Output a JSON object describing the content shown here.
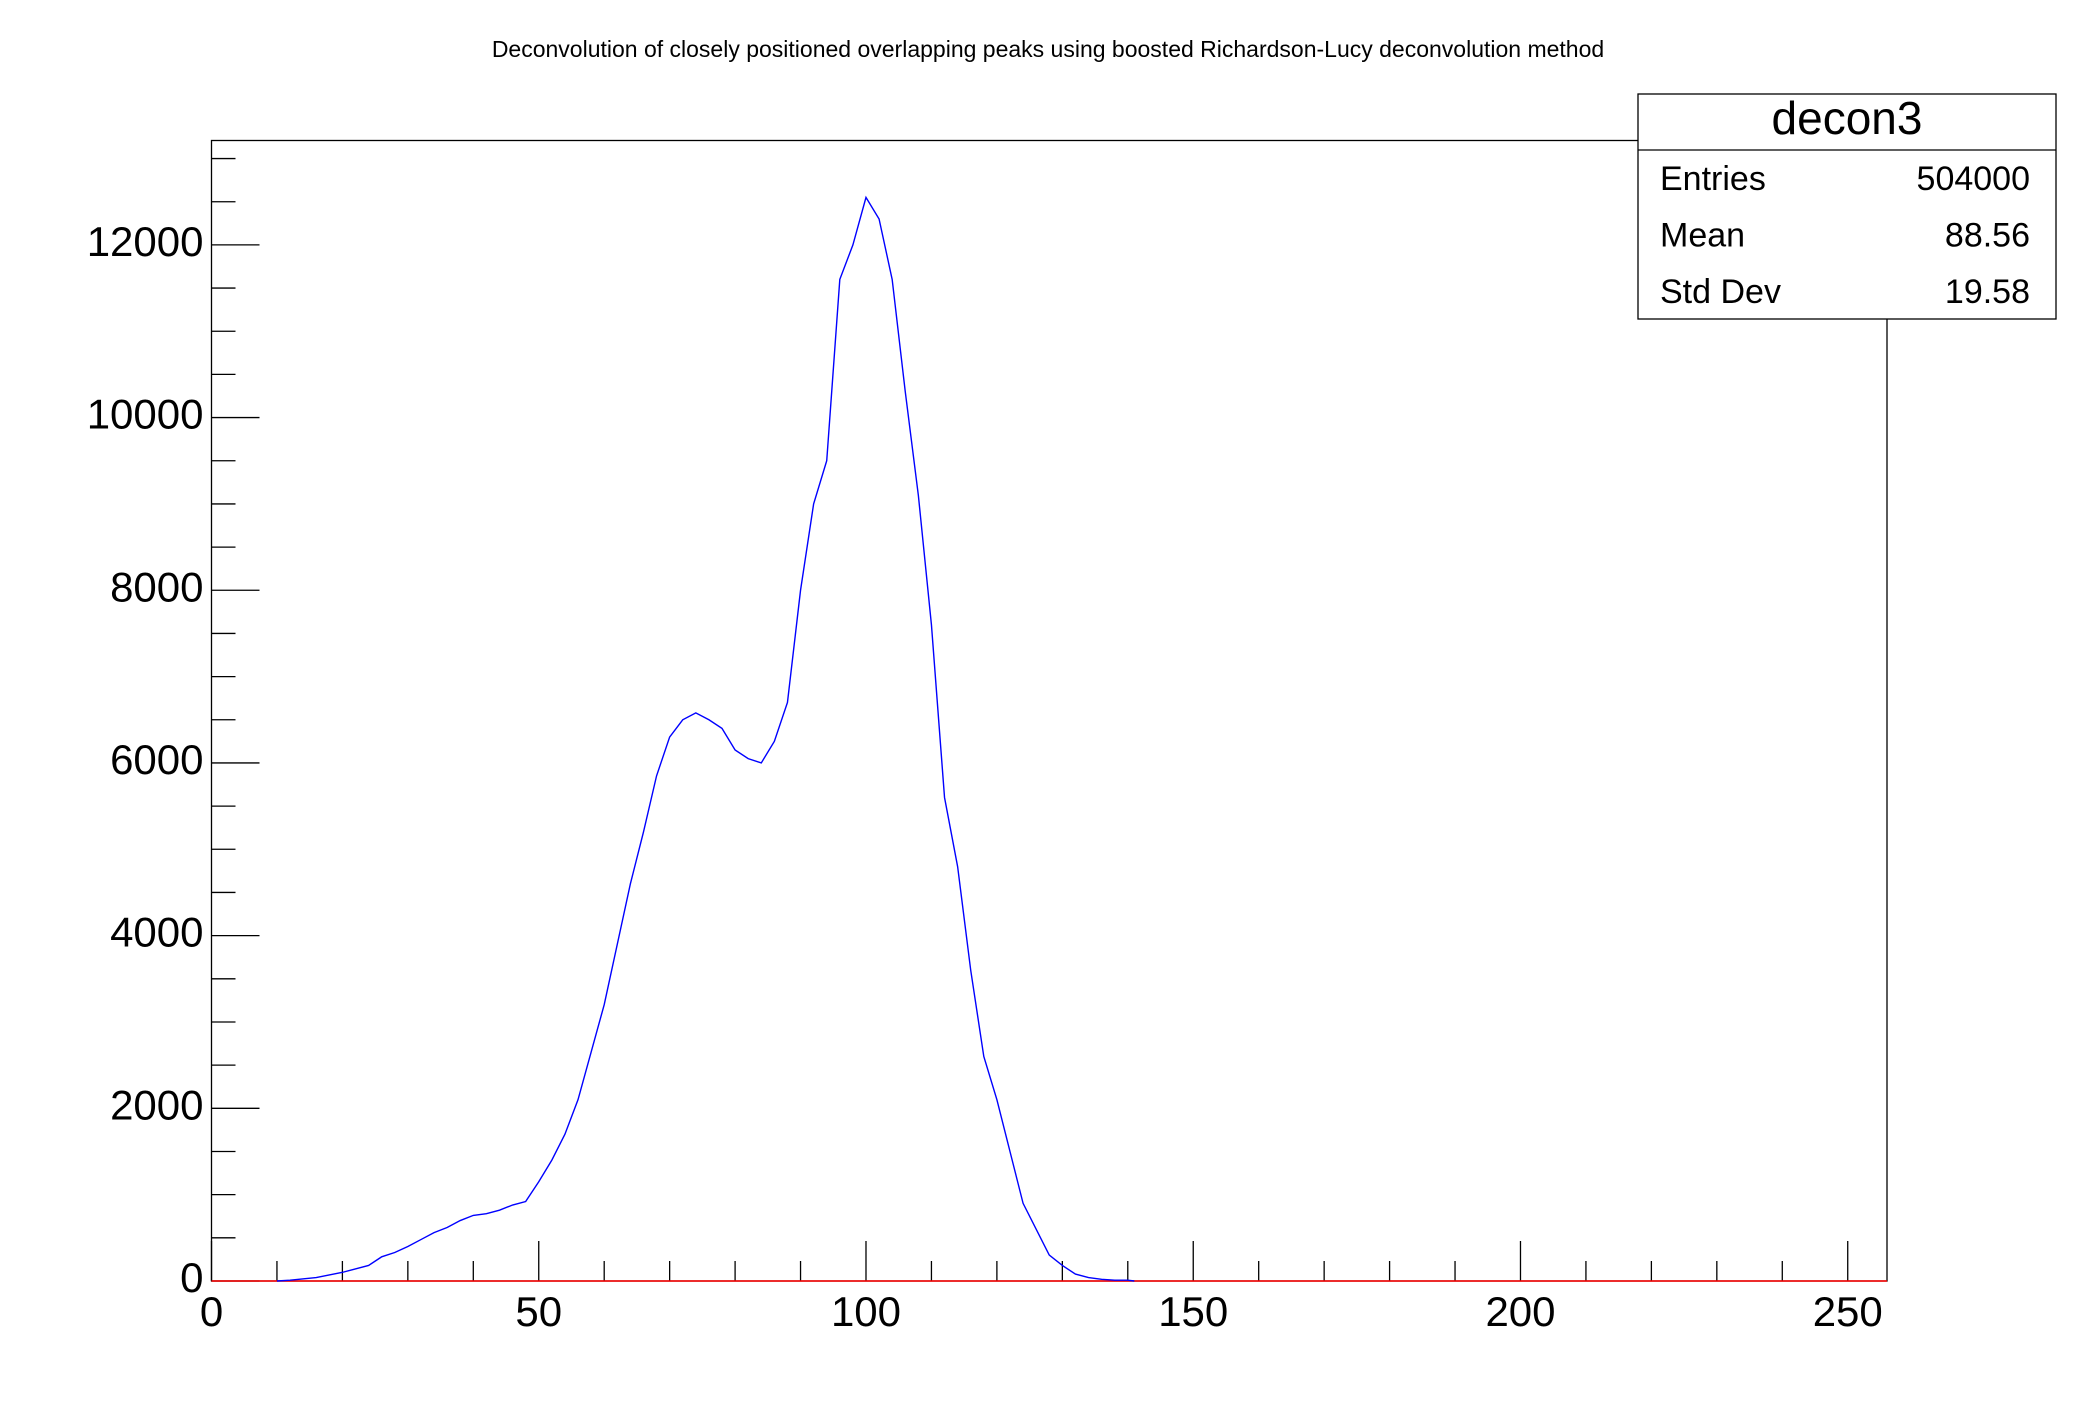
{
  "chart_data": {
    "type": "line",
    "title": "Deconvolution of closely positioned overlapping peaks using boosted Richardson-Lucy deconvolution method",
    "series": [
      {
        "color": "#0000ff",
        "x": [
          10,
          12,
          16,
          20,
          24,
          26,
          28,
          30,
          32,
          34,
          36,
          38,
          40,
          42,
          44,
          46,
          48,
          50,
          52,
          54,
          56,
          58,
          60,
          62,
          64,
          66,
          68,
          70,
          72,
          74,
          76,
          78,
          80,
          82,
          84,
          86,
          88,
          90,
          92,
          94,
          96,
          98,
          100,
          102,
          104,
          106,
          108,
          110,
          112,
          114,
          116,
          118,
          120,
          122,
          124,
          126,
          128,
          130,
          132,
          134,
          136,
          138,
          140,
          141
        ],
        "values": [
          0,
          10,
          40,
          100,
          180,
          280,
          330,
          400,
          480,
          560,
          620,
          700,
          760,
          780,
          820,
          880,
          920,
          1150,
          1400,
          1700,
          2100,
          2650,
          3200,
          3900,
          4600,
          5200,
          5850,
          6300,
          6500,
          6580,
          6500,
          6400,
          6150,
          6050,
          6000,
          6250,
          6700,
          8000,
          9000,
          9500,
          11600,
          12000,
          12550,
          12300,
          11600,
          10300,
          9100,
          7600,
          5600,
          4800,
          3600,
          2600,
          2100,
          1500,
          900,
          600,
          300,
          180,
          80,
          40,
          20,
          10,
          10,
          0
        ]
      },
      {
        "color": "#ff0000",
        "x": [
          0,
          256
        ],
        "values": [
          0,
          0
        ]
      }
    ],
    "xlim": [
      0,
      256
    ],
    "ylim": [
      0,
      13209
    ],
    "xticks": [
      0,
      50,
      100,
      150,
      200,
      250
    ],
    "yticks": [
      0,
      2000,
      4000,
      6000,
      8000,
      10000,
      12000
    ],
    "xminorticks": [
      10,
      20,
      30,
      40,
      60,
      70,
      80,
      90,
      110,
      120,
      130,
      140,
      160,
      170,
      180,
      190,
      210,
      220,
      230,
      240
    ],
    "yminorticks": [
      500,
      1000,
      1500,
      2500,
      3000,
      3500,
      4500,
      5000,
      5500,
      6500,
      7000,
      7500,
      8500,
      9000,
      9500,
      10500,
      11000,
      11500,
      12500,
      13000
    ],
    "stats": {
      "name": "decon3",
      "rows": [
        [
          "Entries",
          "504000"
        ],
        [
          "Mean",
          "88.56"
        ],
        [
          "Std Dev",
          "19.58"
        ]
      ]
    }
  }
}
